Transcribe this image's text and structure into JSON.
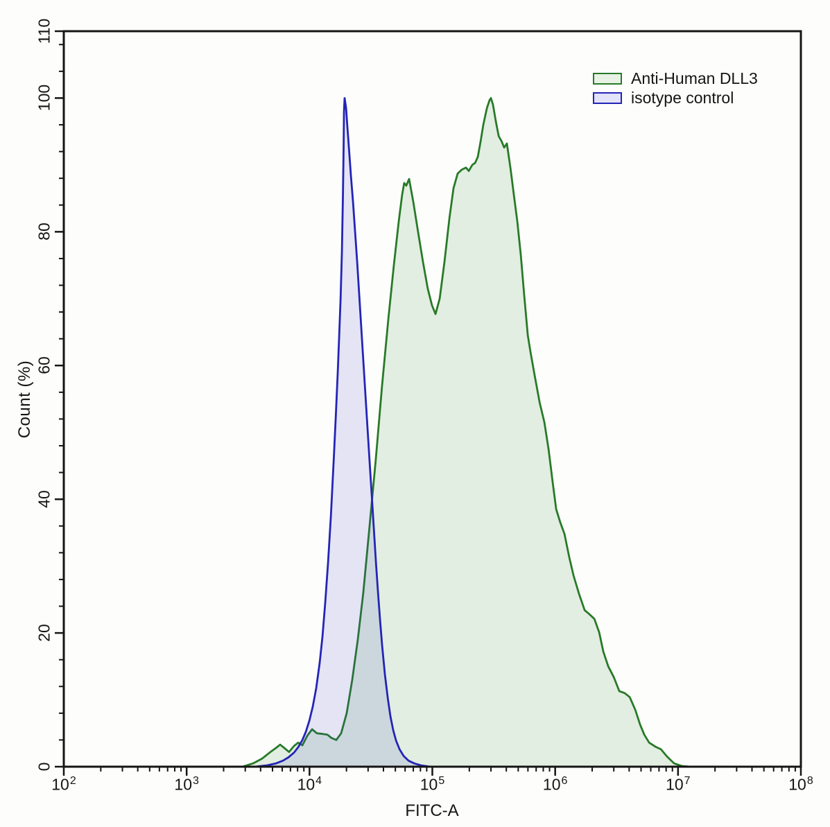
{
  "figure": {
    "background": "#fdfdfc",
    "axis_color": "#151515"
  },
  "chart_data": {
    "type": "area",
    "title": "",
    "xlabel": "FITC-A",
    "ylabel": "Count  (%)",
    "x_scale": "log",
    "x_range_log": [
      2,
      8
    ],
    "ylim": [
      0,
      110
    ],
    "x_major_ticks_log": [
      2,
      3,
      4,
      5,
      6,
      7,
      8
    ],
    "x_tick_label_base": "10",
    "x_minor_subdivisions": [
      2,
      3,
      4,
      5,
      6,
      7,
      8,
      9
    ],
    "y_major_ticks": [
      0,
      20,
      40,
      60,
      80,
      100,
      110
    ],
    "y_minor_step": 4,
    "grid": false,
    "legend_position": "top-right",
    "series": [
      {
        "name": "Anti-Human DLL3",
        "line_color": "#287a28",
        "fill_color": "#4d994d",
        "fill_opacity": 0.15,
        "swatch_fill": "#e7f2e4",
        "peaks_log10x": [
          4.81,
          5.48
        ],
        "peaks_pct": [
          88,
          100
        ],
        "points": [
          [
            3.456,
            0
          ],
          [
            3.541,
            0.5
          ],
          [
            3.614,
            1.2
          ],
          [
            3.682,
            2.2
          ],
          [
            3.727,
            2.8
          ],
          [
            3.761,
            3.3
          ],
          [
            3.795,
            2.8
          ],
          [
            3.834,
            2.2
          ],
          [
            3.874,
            3.1
          ],
          [
            3.908,
            3.6
          ],
          [
            3.942,
            3.2
          ],
          [
            3.981,
            4.6
          ],
          [
            4.021,
            5.6
          ],
          [
            4.06,
            5.0
          ],
          [
            4.105,
            4.9
          ],
          [
            4.145,
            4.8
          ],
          [
            4.179,
            4.3
          ],
          [
            4.218,
            4.0
          ],
          [
            4.258,
            5.0
          ],
          [
            4.303,
            8.0
          ],
          [
            4.348,
            13
          ],
          [
            4.393,
            19
          ],
          [
            4.438,
            26
          ],
          [
            4.489,
            36
          ],
          [
            4.54,
            46
          ],
          [
            4.591,
            57
          ],
          [
            4.642,
            67
          ],
          [
            4.687,
            75
          ],
          [
            4.726,
            81.5
          ],
          [
            4.754,
            85.5
          ],
          [
            4.771,
            87.3
          ],
          [
            4.788,
            86.9
          ],
          [
            4.811,
            87.9
          ],
          [
            4.845,
            84.5
          ],
          [
            4.884,
            80
          ],
          [
            4.924,
            75.5
          ],
          [
            4.963,
            71.5
          ],
          [
            4.997,
            69
          ],
          [
            5.026,
            67.7
          ],
          [
            5.06,
            70
          ],
          [
            5.099,
            75.5
          ],
          [
            5.139,
            82
          ],
          [
            5.172,
            86.5
          ],
          [
            5.206,
            88.7
          ],
          [
            5.24,
            89.3
          ],
          [
            5.274,
            89.6
          ],
          [
            5.297,
            89.1
          ],
          [
            5.325,
            90.0
          ],
          [
            5.348,
            90.3
          ],
          [
            5.37,
            91.2
          ],
          [
            5.393,
            93.5
          ],
          [
            5.415,
            96
          ],
          [
            5.444,
            98.5
          ],
          [
            5.466,
            99.7
          ],
          [
            5.477,
            100
          ],
          [
            5.494,
            99
          ],
          [
            5.517,
            96.5
          ],
          [
            5.54,
            94.3
          ],
          [
            5.562,
            93.6
          ],
          [
            5.585,
            92.6
          ],
          [
            5.607,
            93.2
          ],
          [
            5.636,
            89.5
          ],
          [
            5.664,
            85.5
          ],
          [
            5.692,
            81.5
          ],
          [
            5.72,
            76.5
          ],
          [
            5.748,
            70.5
          ],
          [
            5.777,
            64.5
          ],
          [
            5.799,
            62
          ],
          [
            5.833,
            58.5
          ],
          [
            5.873,
            54.5
          ],
          [
            5.912,
            51.5
          ],
          [
            5.946,
            47.5
          ],
          [
            5.98,
            42.5
          ],
          [
            6.008,
            38.5
          ],
          [
            6.042,
            36.5
          ],
          [
            6.076,
            34.8
          ],
          [
            6.115,
            31.3
          ],
          [
            6.149,
            28.6
          ],
          [
            6.195,
            25.8
          ],
          [
            6.24,
            23.4
          ],
          [
            6.279,
            22.8
          ],
          [
            6.319,
            22.1
          ],
          [
            6.358,
            20.1
          ],
          [
            6.392,
            17.2
          ],
          [
            6.432,
            15.0
          ],
          [
            6.477,
            13.4
          ],
          [
            6.522,
            11.3
          ],
          [
            6.567,
            11.0
          ],
          [
            6.607,
            10.4
          ],
          [
            6.652,
            8.5
          ],
          [
            6.691,
            6.3
          ],
          [
            6.725,
            4.8
          ],
          [
            6.765,
            3.6
          ],
          [
            6.815,
            3.0
          ],
          [
            6.861,
            2.6
          ],
          [
            6.911,
            1.5
          ],
          [
            6.968,
            0.5
          ],
          [
            7.03,
            0.1
          ],
          [
            7.098,
            0
          ]
        ]
      },
      {
        "name": "isotype control",
        "line_color": "#2424b6",
        "fill_color": "#4040cc",
        "fill_opacity": 0.13,
        "swatch_fill": "#e2e2f8",
        "peaks_log10x": [
          4.29
        ],
        "peaks_pct": [
          100
        ],
        "points": [
          [
            3.558,
            0
          ],
          [
            3.654,
            0.2
          ],
          [
            3.727,
            0.5
          ],
          [
            3.784,
            0.9
          ],
          [
            3.829,
            1.4
          ],
          [
            3.874,
            2.1
          ],
          [
            3.908,
            2.9
          ],
          [
            3.942,
            4.0
          ],
          [
            3.97,
            5.2
          ],
          [
            3.999,
            6.9
          ],
          [
            4.027,
            9.0
          ],
          [
            4.055,
            11.8
          ],
          [
            4.083,
            15.5
          ],
          [
            4.106,
            19.5
          ],
          [
            4.128,
            24.5
          ],
          [
            4.151,
            30.5
          ],
          [
            4.174,
            37.5
          ],
          [
            4.196,
            45.5
          ],
          [
            4.213,
            52
          ],
          [
            4.23,
            59
          ],
          [
            4.241,
            64
          ],
          [
            4.253,
            70
          ],
          [
            4.264,
            77
          ],
          [
            4.272,
            85
          ],
          [
            4.278,
            93
          ],
          [
            4.281,
            98
          ],
          [
            4.286,
            100
          ],
          [
            4.298,
            98.5
          ],
          [
            4.309,
            95.5
          ],
          [
            4.323,
            92
          ],
          [
            4.337,
            88.5
          ],
          [
            4.354,
            84.5
          ],
          [
            4.371,
            80
          ],
          [
            4.388,
            75.5
          ],
          [
            4.405,
            70.5
          ],
          [
            4.422,
            65.5
          ],
          [
            4.439,
            60.5
          ],
          [
            4.456,
            55.5
          ],
          [
            4.473,
            50.5
          ],
          [
            4.49,
            45.5
          ],
          [
            4.507,
            40.5
          ],
          [
            4.524,
            35.5
          ],
          [
            4.541,
            30.5
          ],
          [
            4.558,
            26
          ],
          [
            4.575,
            21.8
          ],
          [
            4.592,
            18
          ],
          [
            4.614,
            13.8
          ],
          [
            4.637,
            10.3
          ],
          [
            4.659,
            7.5
          ],
          [
            4.682,
            5.4
          ],
          [
            4.705,
            3.9
          ],
          [
            4.733,
            2.6
          ],
          [
            4.767,
            1.6
          ],
          [
            4.806,
            0.9
          ],
          [
            4.852,
            0.5
          ],
          [
            4.908,
            0.2
          ],
          [
            4.982,
            0
          ]
        ]
      }
    ]
  }
}
